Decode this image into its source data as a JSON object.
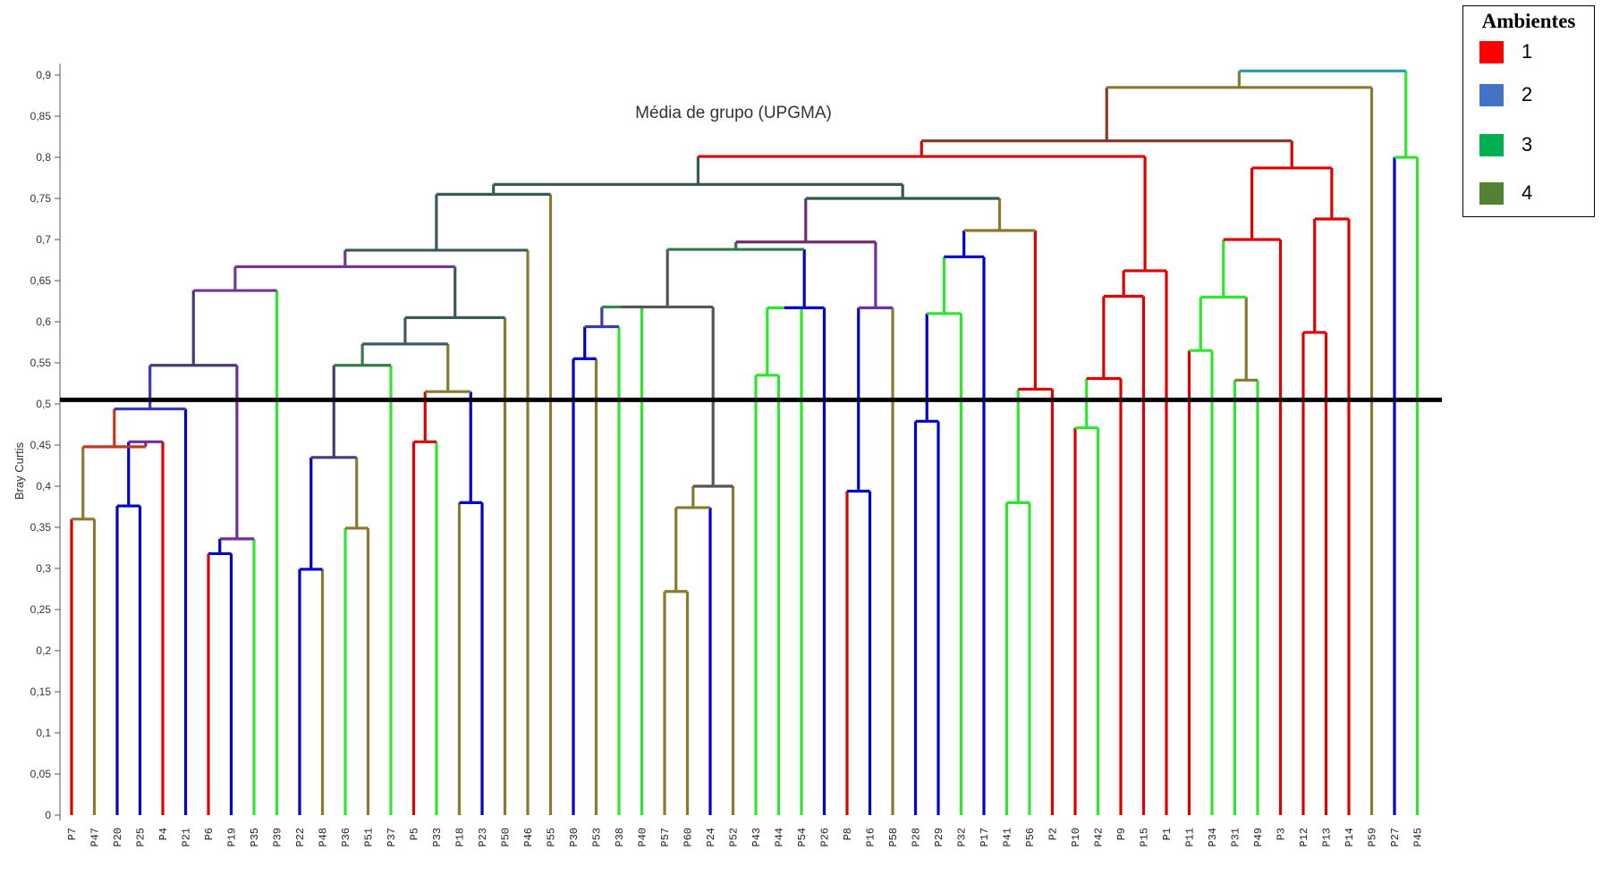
{
  "chart_data": {
    "type": "dendrogram",
    "title": "Média de grupo (UPGMA)",
    "ylabel": "Bray Curtis",
    "ylim": [
      0,
      0.9
    ],
    "yticks": [
      "0",
      "0,05",
      "0,1",
      "0,15",
      "0,2",
      "0,25",
      "0,3",
      "0,35",
      "0,4",
      "0,45",
      "0,5",
      "0,55",
      "0,6",
      "0,65",
      "0,7",
      "0,75",
      "0,8",
      "0,85",
      "0,9"
    ],
    "cutoff": 0.505,
    "leaves": [
      {
        "label": "P7",
        "c": 1
      },
      {
        "label": "P47",
        "c": 4
      },
      {
        "label": "P20",
        "c": 2
      },
      {
        "label": "P25",
        "c": 2
      },
      {
        "label": "P4",
        "c": 1
      },
      {
        "label": "P21",
        "c": 2
      },
      {
        "label": "P6",
        "c": 1
      },
      {
        "label": "P19",
        "c": 2
      },
      {
        "label": "P35",
        "c": 3
      },
      {
        "label": "P39",
        "c": 3
      },
      {
        "label": "P22",
        "c": 2
      },
      {
        "label": "P48",
        "c": 4
      },
      {
        "label": "P36",
        "c": 3
      },
      {
        "label": "P51",
        "c": 4
      },
      {
        "label": "P37",
        "c": 3
      },
      {
        "label": "P5",
        "c": 1
      },
      {
        "label": "P33",
        "c": 3
      },
      {
        "label": "P18",
        "c": 4
      },
      {
        "label": "P23",
        "c": 2
      },
      {
        "label": "P50",
        "c": 4
      },
      {
        "label": "P46",
        "c": 4
      },
      {
        "label": "P55",
        "c": 4
      },
      {
        "label": "P30",
        "c": 2
      },
      {
        "label": "P53",
        "c": 4
      },
      {
        "label": "P38",
        "c": 3
      },
      {
        "label": "P40",
        "c": 3
      },
      {
        "label": "P57",
        "c": 4
      },
      {
        "label": "P60",
        "c": 4
      },
      {
        "label": "P24",
        "c": 2
      },
      {
        "label": "P52",
        "c": 4
      },
      {
        "label": "P43",
        "c": 3
      },
      {
        "label": "P44",
        "c": 3
      },
      {
        "label": "P54",
        "c": 3
      },
      {
        "label": "P26",
        "c": 2
      },
      {
        "label": "P8",
        "c": 1
      },
      {
        "label": "P16",
        "c": 2
      },
      {
        "label": "P58",
        "c": 4
      },
      {
        "label": "P28",
        "c": 2
      },
      {
        "label": "P29",
        "c": 2
      },
      {
        "label": "P32",
        "c": 3
      },
      {
        "label": "P17",
        "c": 2
      },
      {
        "label": "P41",
        "c": 3
      },
      {
        "label": "P56",
        "c": 3
      },
      {
        "label": "P2",
        "c": 1
      },
      {
        "label": "P10",
        "c": 1
      },
      {
        "label": "P42",
        "c": 3
      },
      {
        "label": "P9",
        "c": 1
      },
      {
        "label": "P15",
        "c": 1
      },
      {
        "label": "P1",
        "c": 1
      },
      {
        "label": "P11",
        "c": 1
      },
      {
        "label": "P34",
        "c": 3
      },
      {
        "label": "P31",
        "c": 3
      },
      {
        "label": "P49",
        "c": 3
      },
      {
        "label": "P3",
        "c": 1
      },
      {
        "label": "P12",
        "c": 1
      },
      {
        "label": "P13",
        "c": 1
      },
      {
        "label": "P14",
        "c": 1
      },
      {
        "label": "P59",
        "c": 4
      },
      {
        "label": "P27",
        "c": 2
      },
      {
        "label": "P45",
        "c": 3
      }
    ],
    "merges": [
      {
        "n": 60,
        "a": 0,
        "b": 1,
        "h": 0.36,
        "c": "#8a7a2e"
      },
      {
        "n": 61,
        "a": 2,
        "b": 3,
        "h": 0.376,
        "c": "#0000cc"
      },
      {
        "n": 62,
        "a": 61,
        "b": 4,
        "h": 0.454,
        "c": "#6e2ea6"
      },
      {
        "n": 63,
        "a": 60,
        "b": 62,
        "h": 0.448,
        "c": "#c23a1e"
      },
      {
        "n": 64,
        "a": 63,
        "b": 5,
        "h": 0.494,
        "c": "#3a3ab8"
      },
      {
        "n": 65,
        "a": 6,
        "b": 7,
        "h": 0.318,
        "c": "#0000cc"
      },
      {
        "n": 66,
        "a": 65,
        "b": 8,
        "h": 0.336,
        "c": "#6e2ea6"
      },
      {
        "n": 67,
        "a": 64,
        "b": 66,
        "h": 0.547,
        "c": "#4a3a72"
      },
      {
        "n": 68,
        "a": 67,
        "b": 9,
        "h": 0.638,
        "c": "#6e3a96"
      },
      {
        "n": 69,
        "a": 10,
        "b": 11,
        "h": 0.299,
        "c": "#0000cc"
      },
      {
        "n": 70,
        "a": 12,
        "b": 13,
        "h": 0.349,
        "c": "#8a7a2e"
      },
      {
        "n": 71,
        "a": 69,
        "b": 70,
        "h": 0.435,
        "c": "#4a3a72"
      },
      {
        "n": 72,
        "a": 71,
        "b": 14,
        "h": 0.547,
        "c": "#3a7a4a"
      },
      {
        "n": 73,
        "a": 15,
        "b": 16,
        "h": 0.454,
        "c": "#e00000"
      },
      {
        "n": 74,
        "a": 17,
        "b": 18,
        "h": 0.38,
        "c": "#0000cc"
      },
      {
        "n": 75,
        "a": 73,
        "b": 74,
        "h": 0.515,
        "c": "#8a7a2e"
      },
      {
        "n": 76,
        "a": 72,
        "b": 75,
        "h": 0.573,
        "c": "#3a5a6a"
      },
      {
        "n": 77,
        "a": 76,
        "b": 19,
        "h": 0.605,
        "c": "#3a5a5a"
      },
      {
        "n": 78,
        "a": 68,
        "b": 77,
        "h": 0.667,
        "c": "#6e3a96"
      },
      {
        "n": 79,
        "a": 78,
        "b": 20,
        "h": 0.687,
        "c": "#3a5a5a"
      },
      {
        "n": 80,
        "a": 79,
        "b": 21,
        "h": 0.755,
        "c": "#3a5a5a"
      },
      {
        "n": 81,
        "a": 22,
        "b": 23,
        "h": 0.555,
        "c": "#0000cc"
      },
      {
        "n": 82,
        "a": 81,
        "b": 24,
        "h": 0.594,
        "c": "#3a3ab8"
      },
      {
        "n": 83,
        "a": 82,
        "b": 25,
        "h": 0.618,
        "c": "#2e8a4a"
      },
      {
        "n": 84,
        "a": 26,
        "b": 27,
        "h": 0.272,
        "c": "#8a7a2e"
      },
      {
        "n": 85,
        "a": 84,
        "b": 28,
        "h": 0.374,
        "c": "#8a7a2e"
      },
      {
        "n": 86,
        "a": 85,
        "b": 29,
        "h": 0.4,
        "c": "#555555"
      },
      {
        "n": 87,
        "a": 83,
        "b": 86,
        "h": 0.618,
        "c": "#555555"
      },
      {
        "n": 88,
        "a": 30,
        "b": 31,
        "h": 0.535,
        "c": "#2ee62e"
      },
      {
        "n": 89,
        "a": 88,
        "b": 32,
        "h": 0.617,
        "c": "#2ee62e"
      },
      {
        "n": 90,
        "a": 89,
        "b": 33,
        "h": 0.617,
        "c": "#0000cc"
      },
      {
        "n": 91,
        "a": 87,
        "b": 90,
        "h": 0.688,
        "c": "#2e7a4a"
      },
      {
        "n": 92,
        "a": 34,
        "b": 35,
        "h": 0.394,
        "c": "#0000cc"
      },
      {
        "n": 93,
        "a": 92,
        "b": 36,
        "h": 0.617,
        "c": "#6e2ea6"
      },
      {
        "n": 94,
        "a": 91,
        "b": 93,
        "h": 0.697,
        "c": "#6e2e6e"
      },
      {
        "n": 95,
        "a": 37,
        "b": 38,
        "h": 0.479,
        "c": "#0000cc"
      },
      {
        "n": 96,
        "a": 95,
        "b": 39,
        "h": 0.61,
        "c": "#2ee62e"
      },
      {
        "n": 97,
        "a": 96,
        "b": 40,
        "h": 0.679,
        "c": "#0000cc"
      },
      {
        "n": 98,
        "a": 41,
        "b": 42,
        "h": 0.38,
        "c": "#2ee62e"
      },
      {
        "n": 99,
        "a": 98,
        "b": 43,
        "h": 0.518,
        "c": "#e00000"
      },
      {
        "n": 100,
        "a": 97,
        "b": 99,
        "h": 0.711,
        "c": "#8a7a2e"
      },
      {
        "n": 101,
        "a": 94,
        "b": 100,
        "h": 0.75,
        "c": "#2e5a4a"
      },
      {
        "n": 102,
        "a": 80,
        "b": 101,
        "h": 0.767,
        "c": "#3a5a5a"
      },
      {
        "n": 103,
        "a": 44,
        "b": 45,
        "h": 0.471,
        "c": "#2ee62e"
      },
      {
        "n": 104,
        "a": 103,
        "b": 46,
        "h": 0.531,
        "c": "#e00000"
      },
      {
        "n": 105,
        "a": 104,
        "b": 47,
        "h": 0.631,
        "c": "#e00000"
      },
      {
        "n": 106,
        "a": 105,
        "b": 48,
        "h": 0.662,
        "c": "#e00000"
      },
      {
        "n": 107,
        "a": 102,
        "b": 106,
        "h": 0.801,
        "c": "#e00000"
      },
      {
        "n": 108,
        "a": 49,
        "b": 50,
        "h": 0.565,
        "c": "#2ee62e"
      },
      {
        "n": 109,
        "a": 51,
        "b": 52,
        "h": 0.529,
        "c": "#8a7a2e"
      },
      {
        "n": 110,
        "a": 108,
        "b": 109,
        "h": 0.63,
        "c": "#2ee62e"
      },
      {
        "n": 111,
        "a": 110,
        "b": 53,
        "h": 0.7,
        "c": "#e00000"
      },
      {
        "n": 112,
        "a": 54,
        "b": 55,
        "h": 0.587,
        "c": "#e00000"
      },
      {
        "n": 113,
        "a": 112,
        "b": 56,
        "h": 0.725,
        "c": "#e00000"
      },
      {
        "n": 114,
        "a": 111,
        "b": 113,
        "h": 0.787,
        "c": "#e00000"
      },
      {
        "n": 115,
        "a": 107,
        "b": 114,
        "h": 0.82,
        "c": "#8a3a2a"
      },
      {
        "n": 116,
        "a": 115,
        "b": 57,
        "h": 0.885,
        "c": "#8a7a2e"
      },
      {
        "n": 117,
        "a": 58,
        "b": 59,
        "h": 0.8,
        "c": "#2ee62e"
      },
      {
        "n": 118,
        "a": 116,
        "b": 117,
        "h": 0.905,
        "c": "#2aa0b0"
      }
    ]
  },
  "legend": {
    "title": "Ambientes",
    "items": [
      {
        "label": "1",
        "color": "#ff0000"
      },
      {
        "label": "2",
        "color": "#4472c4"
      },
      {
        "label": "3",
        "color": "#00b050"
      },
      {
        "label": "4",
        "color": "#548235"
      }
    ]
  },
  "colors": {
    "1": "#e00000",
    "2": "#0000cc",
    "3": "#2ee62e",
    "4": "#8a7a2e"
  }
}
